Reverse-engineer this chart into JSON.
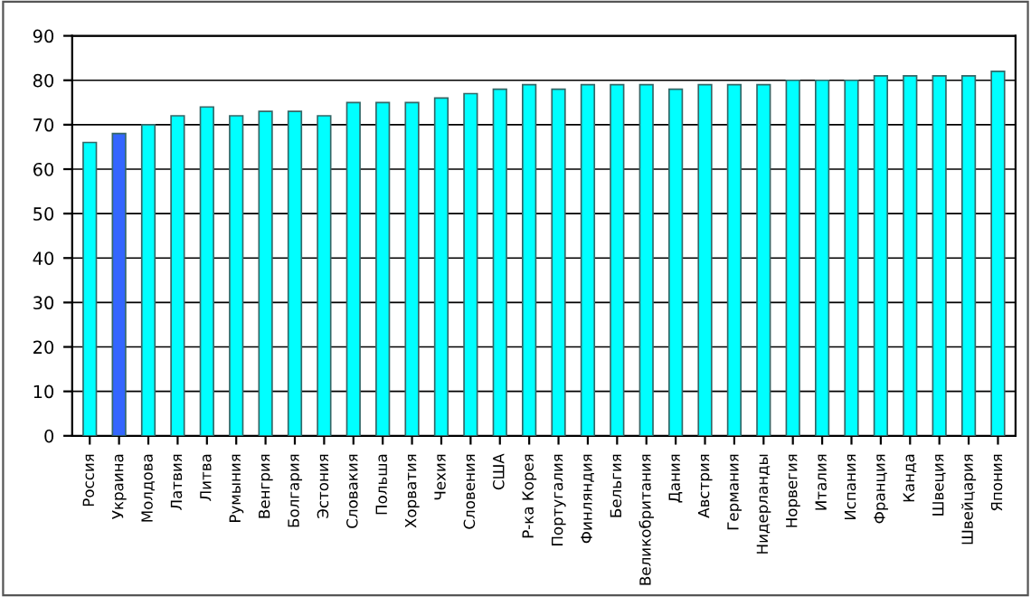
{
  "chart_data": {
    "type": "bar",
    "categories": [
      "Россия",
      "Украина",
      "Молдова",
      "Латвия",
      "Литва",
      "Румыния",
      "Венгрия",
      "Болгария",
      "Эстония",
      "Словакия",
      "Польша",
      "Хорватия",
      "Чехия",
      "Словения",
      "США",
      "Р-ка Корея",
      "Португалия",
      "Финляндия",
      "Бельгия",
      "Великобритания",
      "Дания",
      "Австрия",
      "Германия",
      "Нидерланды",
      "Норвегия",
      "Италия",
      "Испания",
      "Франция",
      "Канда",
      "Швеция",
      "Швейцария",
      "Япония"
    ],
    "values": [
      66,
      68,
      70,
      72,
      74,
      72,
      73,
      73,
      72,
      75,
      75,
      75,
      76,
      77,
      78,
      79,
      78,
      79,
      79,
      79,
      78,
      79,
      79,
      79,
      80,
      80,
      80,
      81,
      81,
      81,
      81,
      82
    ],
    "colors": [
      "#00ffff",
      "#3366ff",
      "#00ffff",
      "#00ffff",
      "#00ffff",
      "#00ffff",
      "#00ffff",
      "#00ffff",
      "#00ffff",
      "#00ffff",
      "#00ffff",
      "#00ffff",
      "#00ffff",
      "#00ffff",
      "#00ffff",
      "#00ffff",
      "#00ffff",
      "#00ffff",
      "#00ffff",
      "#00ffff",
      "#00ffff",
      "#00ffff",
      "#00ffff",
      "#00ffff",
      "#00ffff",
      "#00ffff",
      "#00ffff",
      "#00ffff",
      "#00ffff",
      "#00ffff",
      "#00ffff",
      "#00ffff"
    ],
    "ylim": [
      0,
      90
    ],
    "yticks": [
      0,
      10,
      20,
      30,
      40,
      50,
      60,
      70,
      80,
      90
    ],
    "grid": "y"
  }
}
